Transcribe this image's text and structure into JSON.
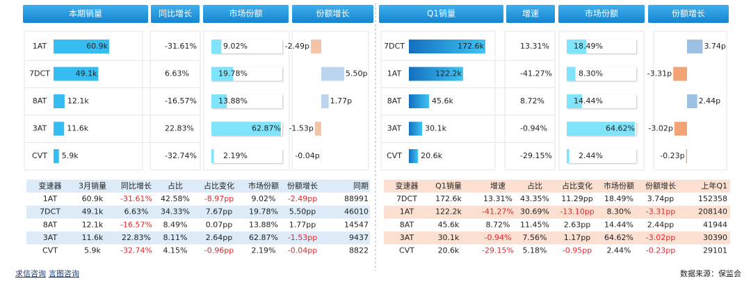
{
  "left": {
    "headers": [
      "本期销量",
      "同比增长",
      "市场份额",
      "份额增长"
    ],
    "rows": [
      {
        "name": "1AT",
        "sales": {
          "value": 60.9,
          "label": "60.9k"
        },
        "growth": "-31.61%",
        "share": {
          "value": 9.02,
          "label": "9.02%"
        },
        "share_change": {
          "value": -2.49,
          "label": "-2.49p"
        }
      },
      {
        "name": "7DCT",
        "sales": {
          "value": 49.1,
          "label": "49.1k"
        },
        "growth": "6.63%",
        "share": {
          "value": 19.78,
          "label": "19.78%"
        },
        "share_change": {
          "value": 5.5,
          "label": "5.50p"
        }
      },
      {
        "name": "8AT",
        "sales": {
          "value": 12.1,
          "label": "12.1k"
        },
        "growth": "-16.57%",
        "share": {
          "value": 13.88,
          "label": "13.88%"
        },
        "share_change": {
          "value": 1.77,
          "label": "1.77p"
        }
      },
      {
        "name": "3AT",
        "sales": {
          "value": 11.6,
          "label": "11.6k"
        },
        "growth": "22.83%",
        "share": {
          "value": 62.87,
          "label": "62.87%"
        },
        "share_change": {
          "value": -1.53,
          "label": "-1.53p"
        }
      },
      {
        "name": "CVT",
        "sales": {
          "value": 5.9,
          "label": "5.9k"
        },
        "growth": "-32.74%",
        "share": {
          "value": 2.19,
          "label": "2.19%"
        },
        "share_change": {
          "value": -0.04,
          "label": "-0.04p"
        }
      }
    ]
  },
  "left_table": {
    "columns": [
      "变速器",
      "3月销量",
      "同比增长",
      "占比",
      "占比变化",
      "市场份额",
      "份额增长",
      "同期"
    ],
    "rows": [
      [
        "1AT",
        "60.9k",
        "-31.61%",
        "42.58%",
        "-8.97pp",
        "9.02%",
        "-2.49pp",
        "88991"
      ],
      [
        "7DCT",
        "49.1k",
        "6.63%",
        "34.33%",
        "7.67pp",
        "19.78%",
        "5.50pp",
        "46010"
      ],
      [
        "8AT",
        "12.1k",
        "-16.57%",
        "8.49%",
        "0.07pp",
        "13.88%",
        "1.77pp",
        "14547"
      ],
      [
        "3AT",
        "11.6k",
        "22.83%",
        "8.11%",
        "2.64pp",
        "62.87%",
        "-1.53pp",
        "9437"
      ],
      [
        "CVT",
        "5.9k",
        "-32.74%",
        "4.15%",
        "-0.96pp",
        "2.19%",
        "-0.04pp",
        "8822"
      ]
    ]
  },
  "right": {
    "headers": [
      "Q1销量",
      "增速",
      "市场份额",
      "份额增长"
    ],
    "rows": [
      {
        "name": "7DCT",
        "sales": {
          "value": 172.6,
          "label": "172.6k"
        },
        "growth": "13.31%",
        "share": {
          "value": 18.49,
          "label": "18.49%"
        },
        "share_change": {
          "value": 3.74,
          "label": "3.74p"
        }
      },
      {
        "name": "1AT",
        "sales": {
          "value": 122.2,
          "label": "122.2k"
        },
        "growth": "-41.27%",
        "share": {
          "value": 8.3,
          "label": "8.30%"
        },
        "share_change": {
          "value": -3.31,
          "label": "-3.31p"
        }
      },
      {
        "name": "8AT",
        "sales": {
          "value": 45.6,
          "label": "45.6k"
        },
        "growth": "8.72%",
        "share": {
          "value": 14.44,
          "label": "14.44%"
        },
        "share_change": {
          "value": 2.44,
          "label": "2.44p"
        }
      },
      {
        "name": "3AT",
        "sales": {
          "value": 30.1,
          "label": "30.1k"
        },
        "growth": "-0.94%",
        "share": {
          "value": 64.62,
          "label": "64.62%"
        },
        "share_change": {
          "value": -3.02,
          "label": "-3.02p"
        }
      },
      {
        "name": "CVT",
        "sales": {
          "value": 20.6,
          "label": "20.6k"
        },
        "growth": "-29.15%",
        "share": {
          "value": 2.44,
          "label": "2.44%"
        },
        "share_change": {
          "value": -0.23,
          "label": "-0.23p"
        }
      }
    ]
  },
  "right_table": {
    "columns": [
      "变速器",
      "Q1销量",
      "增速",
      "占比",
      "占比变化",
      "市场份额",
      "份额增长",
      "上年Q1"
    ],
    "rows": [
      [
        "7DCT",
        "172.6k",
        "13.31%",
        "43.35%",
        "11.29pp",
        "18.49%",
        "3.74pp",
        "152358"
      ],
      [
        "1AT",
        "122.2k",
        "-41.27%",
        "30.69%",
        "-13.10pp",
        "8.30%",
        "-3.31pp",
        "208140"
      ],
      [
        "8AT",
        "45.6k",
        "8.72%",
        "11.45%",
        "2.63pp",
        "14.44%",
        "2.44pp",
        "41944"
      ],
      [
        "3AT",
        "30.1k",
        "-0.94%",
        "7.56%",
        "1.17pp",
        "64.62%",
        "-3.02pp",
        "30390"
      ],
      [
        "CVT",
        "20.6k",
        "-29.15%",
        "5.18%",
        "-0.95pp",
        "2.44%",
        "-0.23pp",
        "29101"
      ]
    ]
  },
  "footer": {
    "links": [
      "求信咨询",
      "言图咨询"
    ],
    "source": "数据来源：保监会"
  }
}
